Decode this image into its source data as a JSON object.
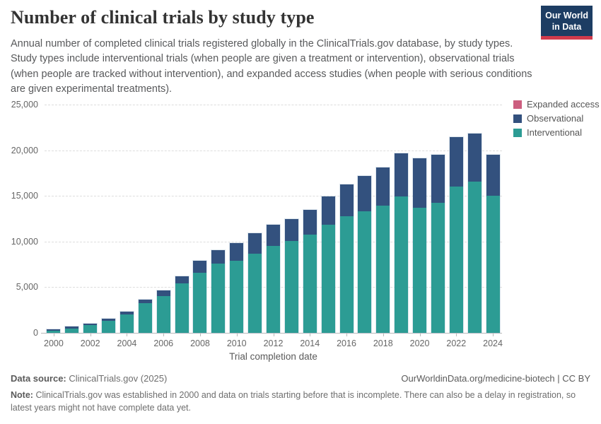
{
  "header": {
    "title": "Number of clinical trials by study type",
    "subtitle": "Annual number of completed clinical trials registered globally in the ClinicalTrials.gov database, by study types. Study types include interventional trials (when people are given a treatment or intervention), observational trials (when people are tracked without intervention), and expanded access studies (when people with serious conditions are given experimental treatments).",
    "logo": {
      "line1": "Our World",
      "line2": "in Data",
      "bg_color": "#1D3D63",
      "stripe_color": "#D13B4C"
    }
  },
  "legend": [
    {
      "label": "Expanded access",
      "color": "#CC5E7F"
    },
    {
      "label": "Observational",
      "color": "#33517E"
    },
    {
      "label": "Interventional",
      "color": "#2C9C94"
    }
  ],
  "chart_data": {
    "type": "bar",
    "stacked": true,
    "title": "Number of clinical trials by study type",
    "xlabel": "Trial completion date",
    "ylabel": "",
    "ylim": [
      0,
      25000
    ],
    "yticks": [
      0,
      5000,
      10000,
      15000,
      20000,
      25000
    ],
    "xtick_years": [
      2000,
      2002,
      2004,
      2006,
      2008,
      2010,
      2012,
      2014,
      2016,
      2018,
      2020,
      2022,
      2024
    ],
    "years": [
      2000,
      2001,
      2002,
      2003,
      2004,
      2005,
      2006,
      2007,
      2008,
      2009,
      2010,
      2011,
      2012,
      2013,
      2014,
      2015,
      2016,
      2017,
      2018,
      2019,
      2020,
      2021,
      2022,
      2023,
      2024
    ],
    "series": [
      {
        "name": "Interventional",
        "color": "#2C9C94",
        "values": [
          270,
          500,
          830,
          1280,
          2000,
          3230,
          4050,
          5440,
          6560,
          7610,
          7930,
          8690,
          9540,
          10050,
          10770,
          11860,
          12790,
          13350,
          13940,
          14960,
          13690,
          14250,
          15990,
          16570,
          15010
        ]
      },
      {
        "name": "Observational",
        "color": "#33517E",
        "values": [
          120,
          160,
          190,
          260,
          310,
          430,
          590,
          790,
          1340,
          1460,
          1920,
          2190,
          2270,
          2450,
          2710,
          3100,
          3450,
          3830,
          4140,
          4670,
          5410,
          5260,
          5440,
          5240,
          4470
        ]
      },
      {
        "name": "Expanded access",
        "color": "#CC5E7F",
        "values": [
          0,
          0,
          0,
          0,
          0,
          0,
          0,
          0,
          0,
          0,
          0,
          0,
          0,
          0,
          0,
          0,
          0,
          0,
          0,
          0,
          0,
          0,
          0,
          0,
          0
        ]
      }
    ],
    "grid": "horizontal-dashed",
    "legend_position": "top-right"
  },
  "footer": {
    "data_source_label": "Data source:",
    "data_source_value": "ClinicalTrials.gov (2025)",
    "link": "OurWorldinData.org/medicine-biotech | CC BY",
    "note_label": "Note:",
    "note_text": "ClinicalTrials.gov was established in 2000 and data on trials starting before that is incomplete. There can also be a delay in registration, so latest years might not have complete data yet."
  }
}
